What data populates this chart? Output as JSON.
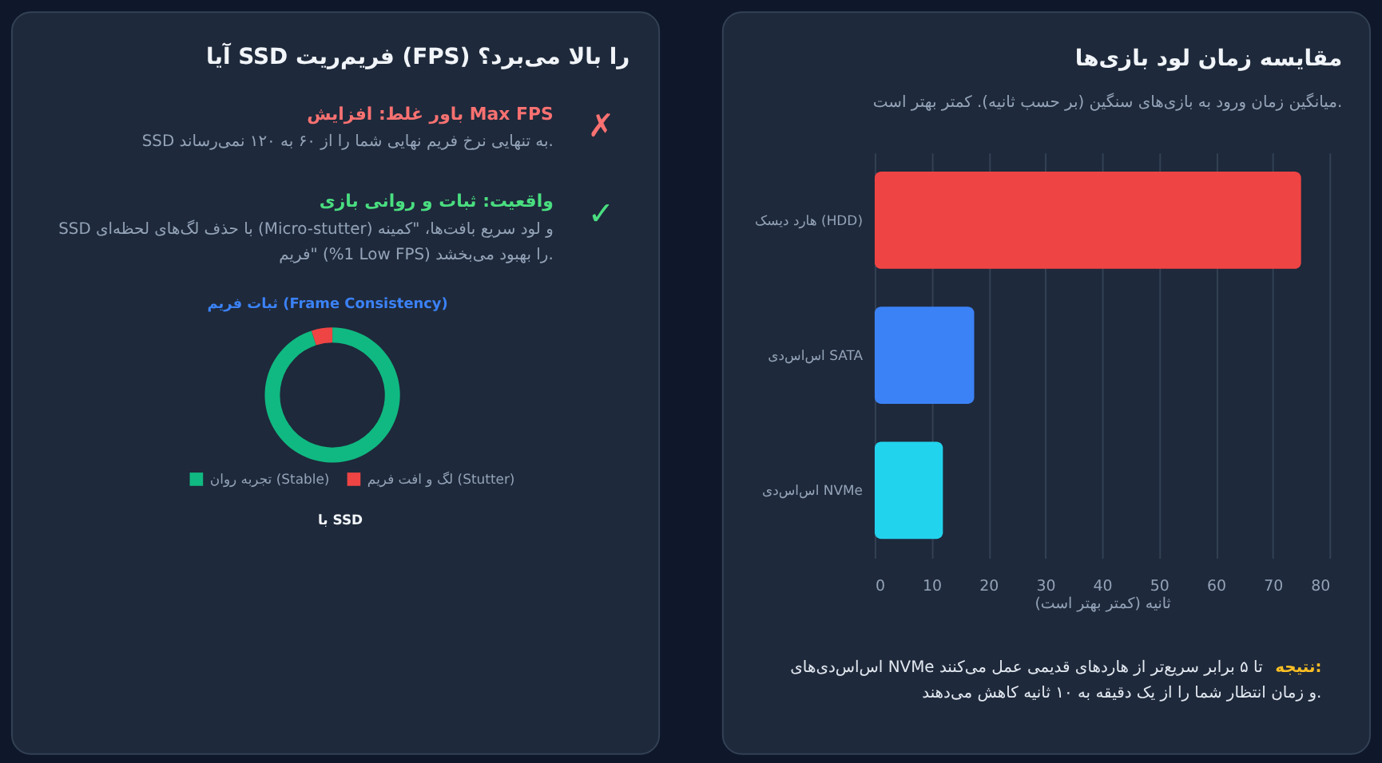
{
  "chart_data": [
    {
      "type": "bar",
      "orientation": "horizontal",
      "title": "مقایسه زمان لود بازی‌ها",
      "subtitle": "میانگین زمان ورود به بازی‌های سنگین (بر حسب ثانیه). کمتر بهتر است.",
      "xlabel": "ثانیه (کمتر بهتر است)",
      "categories": [
        "هارد دیسک (HDD)",
        "اس‌اس‌دی SATA",
        "اس‌اس‌دی NVMe"
      ],
      "values": [
        75,
        17.5,
        12
      ],
      "colors": [
        "#ef4444",
        "#3b82f6",
        "#22d3ee"
      ],
      "xlim": [
        0,
        80
      ],
      "xticks": [
        0,
        10,
        20,
        30,
        40,
        50,
        60,
        70,
        80
      ],
      "grid": "x",
      "annotations": [
        "نتیجه:",
        "اس‌اس‌دی‌های NVMe تا ۵ برابر سریع‌تر از هاردهای قدیمی عمل می‌کنند و زمان انتظار شما را از یک دقیقه به ۱۰ ثانیه کاهش می‌دهند."
      ]
    },
    {
      "type": "other",
      "title": "آیا SSD فریم‌ریت (FPS) را بالا می‌برد؟",
      "annotations": [
        "✗",
        "باور غلط: افزایش Max FPS",
        "SSD به تنهایی نرخ فریم نهایی شما را از ۶۰ به ۱۲۰ نمی‌رساند.",
        "✓",
        "واقعیت: ثبات و روانی بازی",
        "SSD با حذف لگ‌های لحظه‌ای (Micro-stutter) و لود سریع بافت‌ها، \"کمینه فریم\" (%1 Low FPS) را بهبود می‌بخشد."
      ]
    },
    {
      "type": "donut",
      "title": "ثبات فریم (Frame Consistency)",
      "categories": [
        "تجربه روان (Stable)",
        "لگ و افت فریم (Stutter)"
      ],
      "values": [
        95,
        5
      ],
      "colors": [
        "#10b981",
        "#ef4444"
      ],
      "legend": "bottom",
      "annotations": [
        "با SSD"
      ]
    }
  ]
}
